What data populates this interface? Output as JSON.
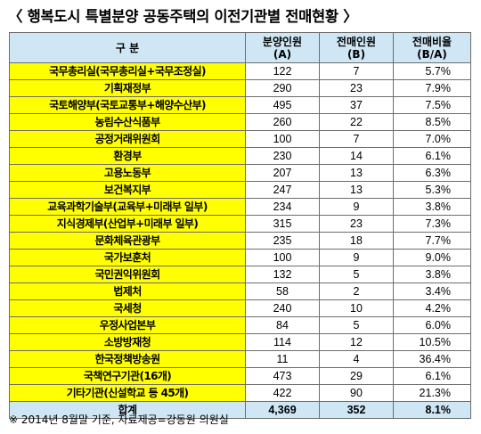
{
  "title": "〈 행복도시 특별분양 공동주택의 이전기관별 전매현황 〉",
  "table": {
    "headers": {
      "category": "구  분",
      "allocated": [
        "분양인원",
        "(A)"
      ],
      "resold": [
        "전매인원",
        "(B)"
      ],
      "ratio": [
        "전매비율",
        "(B/A)"
      ]
    },
    "rows": [
      {
        "name": "국무총리실(국무총리실+국무조정실)",
        "allocated": "122",
        "resold": "7",
        "ratio": "5.7%"
      },
      {
        "name": "기획재정부",
        "allocated": "290",
        "resold": "23",
        "ratio": "7.9%"
      },
      {
        "name": "국토해양부(국토교통부+해양수산부)",
        "allocated": "495",
        "resold": "37",
        "ratio": "7.5%"
      },
      {
        "name": "농림수산식품부",
        "allocated": "260",
        "resold": "22",
        "ratio": "8.5%"
      },
      {
        "name": "공정거래위원회",
        "allocated": "100",
        "resold": "7",
        "ratio": "7.0%"
      },
      {
        "name": "환경부",
        "allocated": "230",
        "resold": "14",
        "ratio": "6.1%"
      },
      {
        "name": "고용노동부",
        "allocated": "207",
        "resold": "13",
        "ratio": "6.3%"
      },
      {
        "name": "보건복지부",
        "allocated": "247",
        "resold": "13",
        "ratio": "5.3%"
      },
      {
        "name": "교육과학기술부(교육부+미래부 일부)",
        "allocated": "234",
        "resold": "9",
        "ratio": "3.8%"
      },
      {
        "name": "지식경제부(산업부+미래부 일부)",
        "allocated": "315",
        "resold": "23",
        "ratio": "7.3%"
      },
      {
        "name": "문화체육관광부",
        "allocated": "235",
        "resold": "18",
        "ratio": "7.7%"
      },
      {
        "name": "국가보훈처",
        "allocated": "100",
        "resold": "9",
        "ratio": "9.0%"
      },
      {
        "name": "국민권익위원회",
        "allocated": "132",
        "resold": "5",
        "ratio": "3.8%"
      },
      {
        "name": "법제처",
        "allocated": "58",
        "resold": "2",
        "ratio": "3.4%"
      },
      {
        "name": "국세청",
        "allocated": "240",
        "resold": "10",
        "ratio": "4.2%"
      },
      {
        "name": "우정사업본부",
        "allocated": "84",
        "resold": "5",
        "ratio": "6.0%"
      },
      {
        "name": "소방방재청",
        "allocated": "114",
        "resold": "12",
        "ratio": "10.5%"
      },
      {
        "name": "한국정책방송원",
        "allocated": "11",
        "resold": "4",
        "ratio": "36.4%"
      },
      {
        "name": "국책연구기관(16개)",
        "allocated": "473",
        "resold": "29",
        "ratio": "6.1%"
      },
      {
        "name": "기타기관(신설학교 등 45개)",
        "allocated": "422",
        "resold": "90",
        "ratio": "21.3%"
      }
    ],
    "total": {
      "name": "합계",
      "allocated": "4,369",
      "resold": "352",
      "ratio": "8.1%"
    }
  },
  "footnote": "※ 2014년 8월말 기준, 자료제공=강동원 의원실",
  "colors": {
    "header_bg": "#cfe7f5",
    "name_bg": "#ffff00",
    "border": "#6d6d6d"
  }
}
